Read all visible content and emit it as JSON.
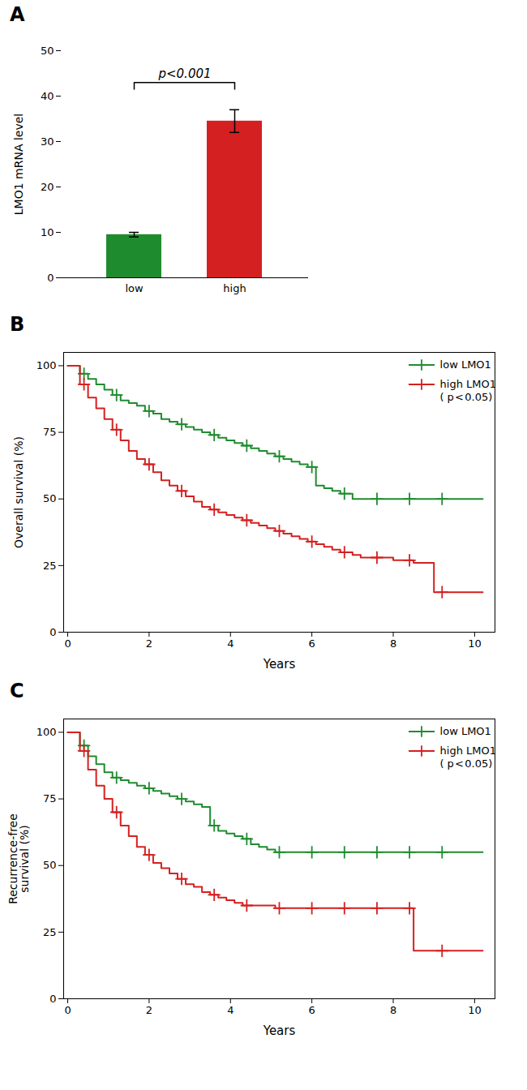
{
  "chart_data": [
    {
      "type": "bar",
      "title": "A",
      "categories": [
        "low",
        "high"
      ],
      "values": [
        9.5,
        34.5
      ],
      "errors": [
        0.5,
        2.5
      ],
      "colors": [
        "#1e8c2e",
        "#d42020"
      ],
      "ylabel": "LMO1 mRNA level",
      "ylim": [
        0,
        50
      ],
      "yticks": [
        0,
        10,
        20,
        30,
        40,
        50
      ],
      "annotations": [
        {
          "text": "p<0.001",
          "x1": "low",
          "x2": "high",
          "y": 43
        }
      ]
    },
    {
      "type": "line",
      "title": "B",
      "xlabel": "Years",
      "ylabel": "Overall survival (%)",
      "xlim": [
        -0.1,
        10.5
      ],
      "ylim": [
        0,
        105
      ],
      "xticks": [
        0,
        2,
        4,
        6,
        8,
        10
      ],
      "yticks": [
        0,
        25,
        50,
        75,
        100
      ],
      "legend": "upper right",
      "series": [
        {
          "name": "low LMO1",
          "color": "#1e8c2e",
          "line_style": "step",
          "marker": "plus",
          "x": [
            0,
            0.3,
            0.5,
            0.7,
            0.9,
            1.1,
            1.3,
            1.5,
            1.7,
            1.9,
            2.1,
            2.3,
            2.5,
            2.7,
            2.9,
            3.1,
            3.3,
            3.5,
            3.7,
            3.9,
            4.1,
            4.3,
            4.5,
            4.7,
            4.9,
            5.1,
            5.3,
            5.5,
            5.7,
            5.9,
            6.1,
            6.3,
            6.5,
            6.7,
            7.0,
            7.5,
            8.0,
            8.5,
            9.0,
            9.5,
            10.2
          ],
          "values": [
            100,
            97,
            95,
            93,
            91,
            89,
            87,
            86,
            85,
            83,
            82,
            80,
            79,
            78,
            77,
            76,
            75,
            74,
            73,
            72,
            71,
            70,
            69,
            68,
            67,
            66,
            65,
            64,
            63,
            62,
            55,
            54,
            53,
            52,
            50,
            50,
            50,
            50,
            50,
            50,
            50
          ],
          "censor_x": [
            0.4,
            1.2,
            2.0,
            2.8,
            3.6,
            4.4,
            5.2,
            6.0,
            6.8,
            7.6,
            8.4,
            9.2
          ],
          "censor_y": [
            97,
            89,
            83,
            78,
            74,
            70,
            66,
            62,
            52,
            50,
            50,
            50
          ]
        },
        {
          "name": "high LMO1\n(  p < 0.05)",
          "color": "#d42020",
          "line_style": "step",
          "marker": "plus",
          "x": [
            0,
            0.3,
            0.5,
            0.7,
            0.9,
            1.1,
            1.3,
            1.5,
            1.7,
            1.9,
            2.1,
            2.3,
            2.5,
            2.7,
            2.9,
            3.1,
            3.3,
            3.5,
            3.7,
            3.9,
            4.1,
            4.3,
            4.5,
            4.7,
            4.9,
            5.1,
            5.3,
            5.5,
            5.7,
            5.9,
            6.1,
            6.3,
            6.5,
            6.7,
            7.0,
            7.2,
            8.0,
            8.5,
            9.0,
            9.5,
            10.2
          ],
          "values": [
            100,
            93,
            88,
            84,
            80,
            76,
            72,
            68,
            65,
            63,
            60,
            57,
            55,
            53,
            51,
            49,
            47,
            46,
            45,
            44,
            43,
            42,
            41,
            40,
            39,
            38,
            37,
            36,
            35,
            34,
            33,
            32,
            31,
            30,
            29,
            28,
            27,
            26,
            15,
            15,
            15
          ],
          "censor_x": [
            0.4,
            1.2,
            2.0,
            2.8,
            3.6,
            4.4,
            5.2,
            6.0,
            6.8,
            7.6,
            8.4,
            9.2
          ],
          "censor_y": [
            93,
            76,
            63,
            53,
            46,
            42,
            38,
            34,
            30,
            28,
            27,
            15
          ]
        }
      ]
    },
    {
      "type": "line",
      "title": "C",
      "xlabel": "Years",
      "ylabel": "Recurrence-free\nsurvival (%)",
      "xlim": [
        -0.1,
        10.5
      ],
      "ylim": [
        0,
        105
      ],
      "xticks": [
        0,
        2,
        4,
        6,
        8,
        10
      ],
      "yticks": [
        0,
        25,
        50,
        75,
        100
      ],
      "legend": "upper right",
      "series": [
        {
          "name": "low LMO1",
          "color": "#1e8c2e",
          "line_style": "step",
          "marker": "plus",
          "x": [
            0,
            0.3,
            0.5,
            0.7,
            0.9,
            1.1,
            1.3,
            1.5,
            1.7,
            1.9,
            2.1,
            2.3,
            2.5,
            2.7,
            2.9,
            3.1,
            3.3,
            3.5,
            3.7,
            3.9,
            4.1,
            4.3,
            4.5,
            4.7,
            4.9,
            5.1,
            5.3,
            5.5,
            5.7,
            6.0,
            6.5,
            7.0,
            7.5,
            8.0,
            8.5,
            9.0,
            9.5,
            10.2
          ],
          "values": [
            100,
            95,
            91,
            88,
            85,
            83,
            82,
            81,
            80,
            79,
            78,
            77,
            76,
            75,
            74,
            73,
            72,
            65,
            63,
            62,
            61,
            60,
            58,
            57,
            56,
            55,
            55,
            55,
            55,
            55,
            55,
            55,
            55,
            55,
            55,
            55,
            55,
            55
          ],
          "censor_x": [
            0.4,
            1.2,
            2.0,
            2.8,
            3.6,
            4.4,
            5.2,
            6.0,
            6.8,
            7.6,
            8.4,
            9.2
          ],
          "censor_y": [
            95,
            83,
            79,
            75,
            65,
            60,
            55,
            55,
            55,
            55,
            55,
            55
          ]
        },
        {
          "name": "high LMO1\n(  p < 0.05)",
          "color": "#d42020",
          "line_style": "step",
          "marker": "plus",
          "x": [
            0,
            0.3,
            0.5,
            0.7,
            0.9,
            1.1,
            1.3,
            1.5,
            1.7,
            1.9,
            2.1,
            2.3,
            2.5,
            2.7,
            2.9,
            3.1,
            3.3,
            3.5,
            3.7,
            3.9,
            4.1,
            4.3,
            4.5,
            4.7,
            4.9,
            5.1,
            5.3,
            5.5,
            5.7,
            6.0,
            6.5,
            7.0,
            7.5,
            8.0,
            8.5,
            9.0,
            9.5,
            10.2
          ],
          "values": [
            100,
            93,
            86,
            80,
            75,
            70,
            65,
            61,
            57,
            54,
            51,
            49,
            47,
            45,
            43,
            42,
            40,
            39,
            38,
            37,
            36,
            35,
            35,
            35,
            35,
            34,
            34,
            34,
            34,
            34,
            34,
            34,
            34,
            34,
            18,
            18,
            18,
            18
          ],
          "censor_x": [
            0.4,
            1.2,
            2.0,
            2.8,
            3.6,
            4.4,
            5.2,
            6.0,
            6.8,
            7.6,
            8.4,
            9.2
          ],
          "censor_y": [
            93,
            70,
            54,
            45,
            39,
            35,
            34,
            34,
            34,
            34,
            34,
            18
          ]
        }
      ]
    }
  ]
}
